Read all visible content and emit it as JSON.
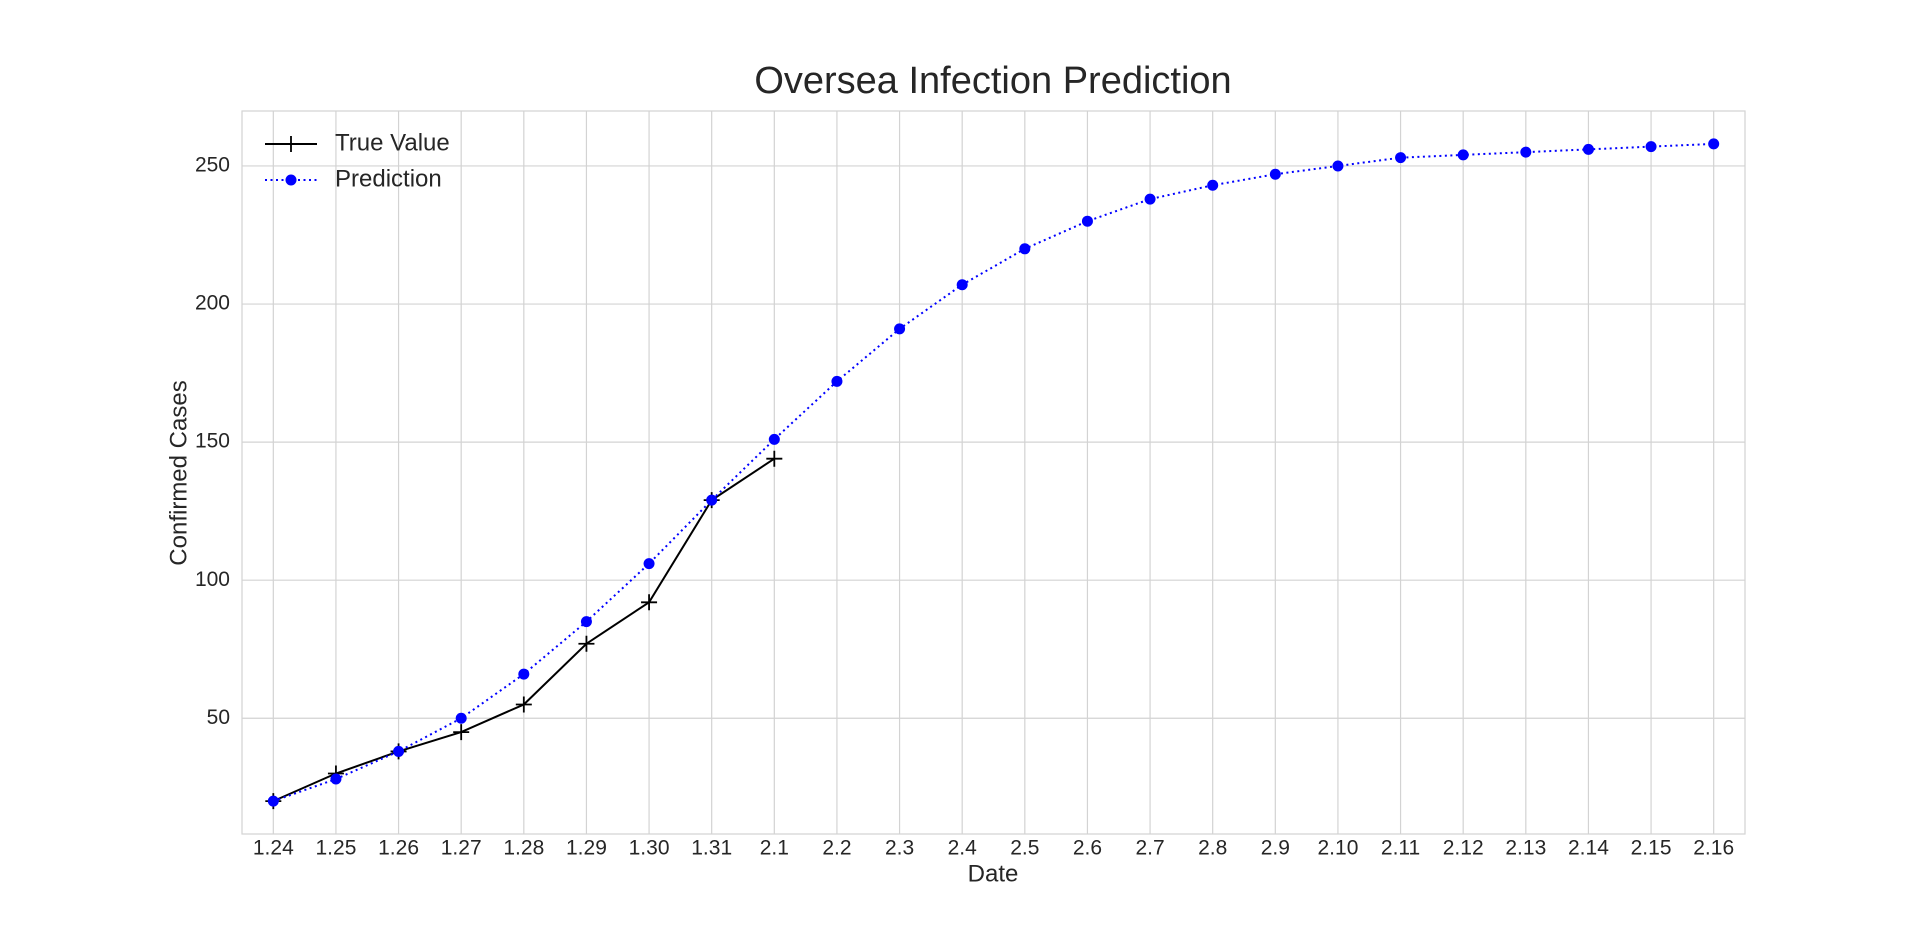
{
  "chart_data": {
    "type": "line",
    "title": "Oversea Infection Prediction",
    "xlabel": "Date",
    "ylabel": "Confirmed Cases",
    "categories": [
      "1.24",
      "1.25",
      "1.26",
      "1.27",
      "1.28",
      "1.29",
      "1.30",
      "1.31",
      "2.1",
      "2.2",
      "2.3",
      "2.4",
      "2.5",
      "2.6",
      "2.7",
      "2.8",
      "2.9",
      "2.10",
      "2.11",
      "2.12",
      "2.13",
      "2.14",
      "2.15",
      "2.16"
    ],
    "series": [
      {
        "name": "True Value",
        "color": "#000000",
        "marker": "plus",
        "linestyle": "solid",
        "values": [
          20,
          30,
          38,
          45,
          55,
          77,
          92,
          129,
          144,
          null,
          null,
          null,
          null,
          null,
          null,
          null,
          null,
          null,
          null,
          null,
          null,
          null,
          null,
          null
        ]
      },
      {
        "name": "Prediction",
        "color": "#0000ff",
        "marker": "circle",
        "linestyle": "dotted",
        "values": [
          20,
          28,
          38,
          50,
          66,
          85,
          106,
          129,
          151,
          172,
          191,
          207,
          220,
          230,
          238,
          243,
          247,
          250,
          253,
          254,
          255,
          256,
          257,
          258
        ]
      }
    ],
    "ylim": [
      8.1,
      269.9
    ],
    "yticks": [
      50,
      100,
      150,
      200,
      250
    ],
    "grid": true,
    "legend": "upper left"
  }
}
